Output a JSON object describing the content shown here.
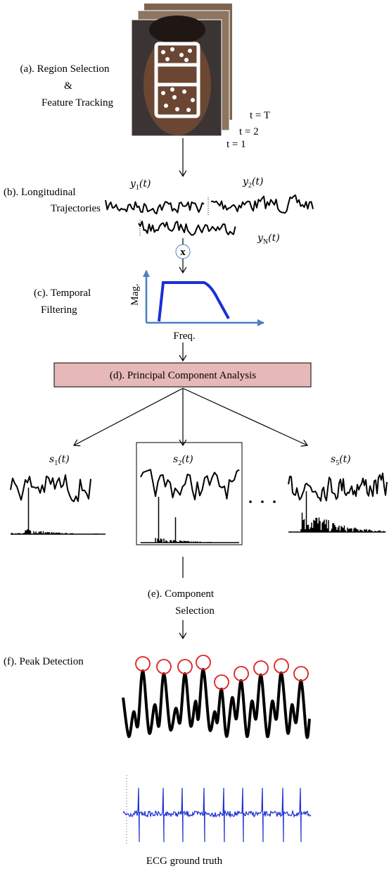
{
  "panel_a": {
    "label_lines": [
      "(a). Region Selection",
      "&",
      "Feature Tracking"
    ],
    "frames": [
      "t = T",
      "t = 2",
      "t = 1"
    ]
  },
  "panel_b": {
    "label_lines": [
      "(b). Longitudinal",
      "Trajectories"
    ],
    "signals": [
      {
        "base": "y",
        "sub": "1",
        "arg": "(t)"
      },
      {
        "base": "y",
        "sub": "2",
        "arg": "(t)"
      },
      {
        "base": "y",
        "sub": "N",
        "arg": "(t)"
      }
    ],
    "operator": "x"
  },
  "panel_c": {
    "label_lines": [
      "(c). Temporal",
      "Filtering"
    ],
    "y_axis": "Mag.",
    "x_axis": "Freq."
  },
  "panel_d": {
    "label": "(d). Principal Component Analysis"
  },
  "components": [
    {
      "base": "s",
      "sub": "1",
      "arg": "(t)"
    },
    {
      "base": "s",
      "sub": "2",
      "arg": "(t)"
    },
    {
      "base": "s",
      "sub": "5",
      "arg": "(t)"
    }
  ],
  "panel_e": {
    "label_lines": [
      "(e). Component",
      "Selection"
    ]
  },
  "panel_f": {
    "label": "(f). Peak Detection",
    "caption": "ECG ground truth"
  }
}
